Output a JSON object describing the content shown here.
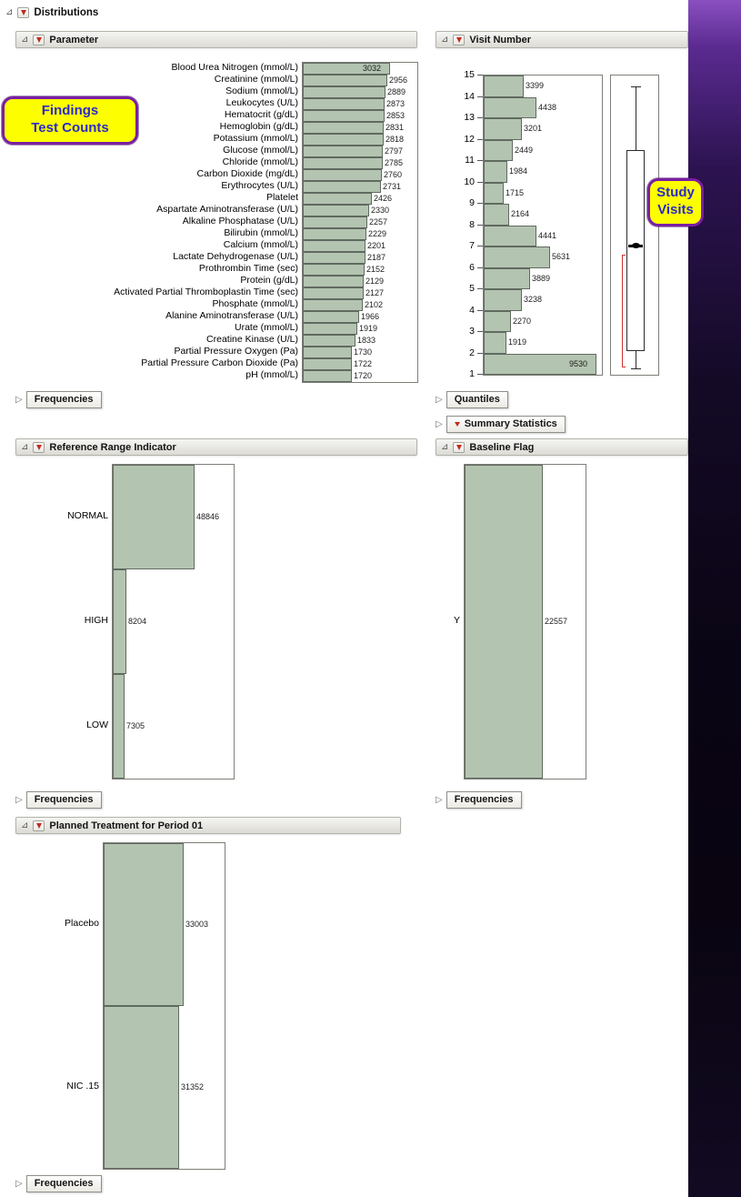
{
  "window": {
    "title": "Distributions"
  },
  "annotations": {
    "findings": {
      "line1": "Findings",
      "line2": "Test Counts"
    },
    "study": {
      "line1": "Study",
      "line2": "Visits"
    }
  },
  "buttons": {
    "frequencies": "Frequencies",
    "quantiles": "Quantiles",
    "summary_statistics": "Summary Statistics"
  },
  "colors": {
    "bar_fill": "#b3c4b1",
    "bar_border": "#606a5f",
    "annotation_fill": "#fdff00",
    "annotation_border": "#7a1fa2",
    "annotation_text": "#2a2ac8",
    "shortest_half_bracket": "#cc3333"
  },
  "chart_data": {
    "parameter": {
      "type": "bar",
      "title": "Parameter",
      "orientation": "horizontal",
      "axis_max": 4000,
      "categories": [
        "Blood Urea Nitrogen (mmol/L)",
        "Creatinine (mmol/L)",
        "Sodium (mmol/L)",
        "Leukocytes (U/L)",
        "Hematocrit (g/dL)",
        "Hemoglobin (g/dL)",
        "Potassium (mmol/L)",
        "Glucose (mmol/L)",
        "Chloride (mmol/L)",
        "Carbon Dioxide (mg/dL)",
        "Erythrocytes (U/L)",
        "Platelet",
        "Aspartate Aminotransferase (U/L)",
        "Alkaline Phosphatase (U/L)",
        "Bilirubin (mmol/L)",
        "Calcium (mmol/L)",
        "Lactate Dehydrogenase (U/L)",
        "Prothrombin Time (sec)",
        "Protein (g/dL)",
        "Activated Partial Thromboplastin Time (sec)",
        "Phosphate (mmol/L)",
        "Alanine Aminotransferase (U/L)",
        "Urate (mmol/L)",
        "Creatine Kinase (U/L)",
        "Partial Pressure Oxygen (Pa)",
        "Partial Pressure Carbon Dioxide (Pa)",
        "pH (mmol/L)"
      ],
      "values": [
        3032,
        2956,
        2889,
        2873,
        2853,
        2831,
        2818,
        2797,
        2785,
        2760,
        2731,
        2426,
        2330,
        2257,
        2229,
        2201,
        2187,
        2152,
        2129,
        2127,
        2102,
        1966,
        1919,
        1833,
        1730,
        1722,
        1720
      ]
    },
    "visit_number": {
      "type": "bar",
      "title": "Visit Number",
      "orientation": "horizontal",
      "axis_ticks": [
        15,
        14,
        13,
        12,
        11,
        10,
        9,
        8,
        7,
        6,
        5,
        4,
        3,
        2,
        1
      ],
      "bin_counts": [
        3399,
        4438,
        3201,
        2449,
        1984,
        1715,
        2164,
        4441,
        5631,
        3889,
        3238,
        2270,
        1919,
        9530
      ],
      "axis_max": 10000,
      "boxplot": {
        "whisker_high": 14.5,
        "q3": 11.5,
        "median": 7.1,
        "q1": 2.1,
        "whisker_low": 1.3,
        "shortest_half": [
          1.4,
          6.6
        ]
      }
    },
    "reference_range": {
      "type": "bar",
      "title": "Reference Range Indicator",
      "orientation": "horizontal",
      "categories": [
        "NORMAL",
        "HIGH",
        "LOW"
      ],
      "values": [
        48846,
        8204,
        7305
      ],
      "axis_max": 72000
    },
    "baseline_flag": {
      "type": "bar",
      "title": "Baseline Flag",
      "orientation": "horizontal",
      "categories": [
        "Y"
      ],
      "values": [
        22557
      ],
      "axis_max": 35000
    },
    "planned_treatment": {
      "type": "bar",
      "title": "Planned Treatment for Period 01",
      "orientation": "horizontal",
      "categories": [
        "Placebo",
        "NIC .15"
      ],
      "values": [
        33003,
        31352
      ],
      "axis_max": 50000
    }
  }
}
